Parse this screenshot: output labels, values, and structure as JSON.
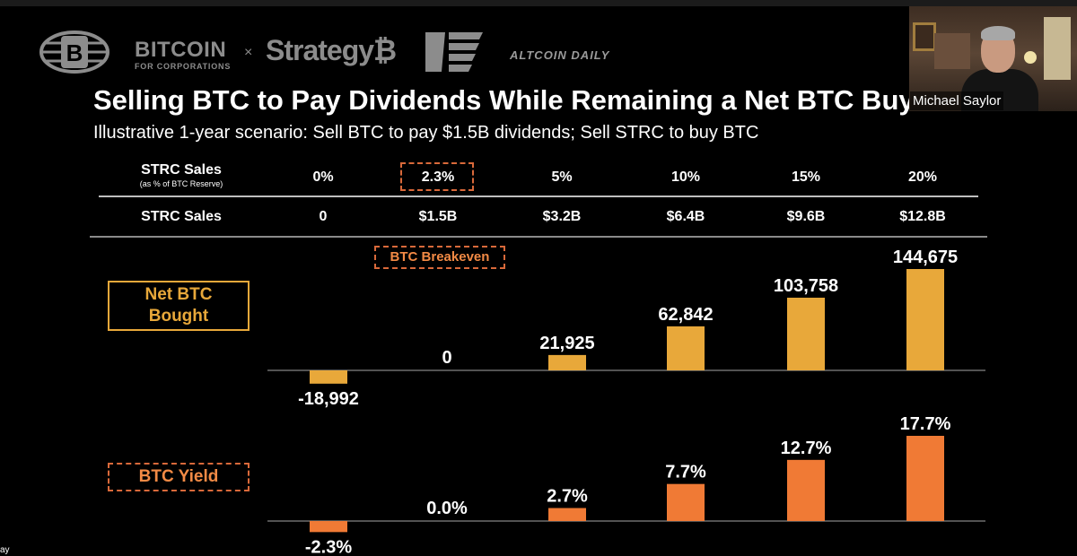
{
  "header": {
    "brand_bfc_line1": "BITCOIN",
    "brand_bfc_line2": "FOR CORPORATIONS",
    "brand_x": "×",
    "brand_strategy": "Strategy₿",
    "brand_altcoin": "ALTCOIN DAILY"
  },
  "title": "Selling BTC to Pay Dividends While Remaining a Net BTC Buyer",
  "subtitle": "Illustrative 1-year scenario: Sell BTC to pay $1.5B dividends; Sell STRC to buy BTC",
  "table": {
    "row1_label": "STRC Sales",
    "row1_sublabel": "(as % of BTC Reserve)",
    "row1_values": [
      "0%",
      "2.3%",
      "5%",
      "10%",
      "15%",
      "20%"
    ],
    "row2_label": "STRC Sales",
    "row2_values": [
      "0",
      "$1.5B",
      "$3.2B",
      "$6.4B",
      "$9.6B",
      "$12.8B"
    ]
  },
  "breakeven_label": "BTC Breakeven",
  "net_btc_label_line1": "Net BTC",
  "net_btc_label_line2": "Bought",
  "btc_yield_label": "BTC Yield",
  "webcam": {
    "name": "Michael Saylor"
  },
  "corner_text": "ay",
  "colors": {
    "net_bar": "#e8a83a",
    "yield_bar": "#f07a35",
    "accent_dashed": "#d9693a"
  },
  "chart_data": [
    {
      "type": "bar",
      "categories": [
        "0%",
        "2.3%",
        "5%",
        "10%",
        "15%",
        "20%"
      ],
      "values": [
        -18992,
        0,
        21925,
        62842,
        103758,
        144675
      ],
      "labels": [
        "-18,992",
        "0",
        "21,925",
        "62,842",
        "103,758",
        "144,675"
      ],
      "title": "Net BTC Bought"
    },
    {
      "type": "bar",
      "categories": [
        "0%",
        "2.3%",
        "5%",
        "10%",
        "15%",
        "20%"
      ],
      "values": [
        -2.3,
        0.0,
        2.7,
        7.7,
        12.7,
        17.7
      ],
      "labels": [
        "-2.3%",
        "0.0%",
        "2.7%",
        "7.7%",
        "12.7%",
        "17.7%"
      ],
      "title": "BTC Yield"
    }
  ]
}
